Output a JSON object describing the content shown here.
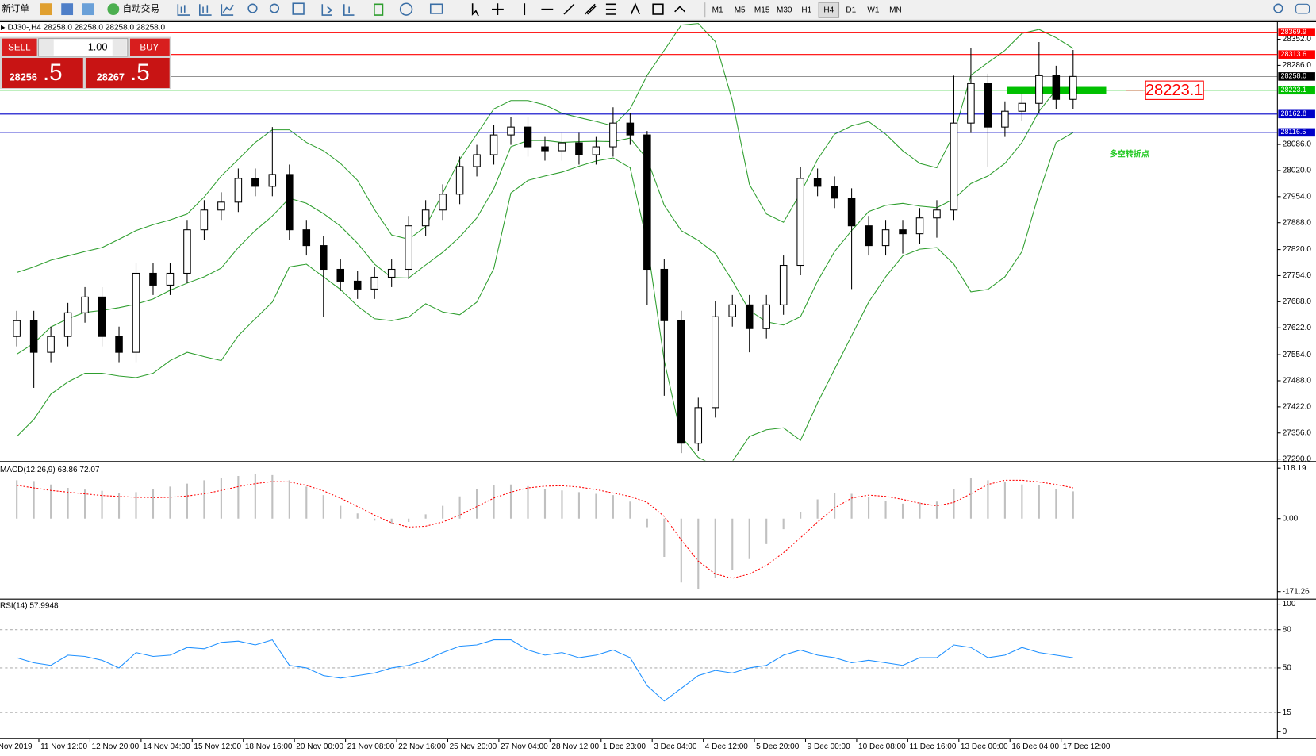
{
  "toolbar": {
    "new_order": "新订单",
    "auto_trading": "自动交易",
    "timeframes": [
      "M1",
      "M5",
      "M15",
      "M30",
      "H1",
      "H4",
      "D1",
      "W1",
      "MN"
    ],
    "selected_timeframe": 5
  },
  "order_panel": {
    "sell": "SELL",
    "buy": "BUY",
    "volume": "1.00",
    "sell_price": "28256",
    "sell_price_tail": ".5",
    "buy_price": "28267",
    "buy_price_tail": ".5"
  },
  "chart_data": [
    {
      "type": "candlestick",
      "title": "DJ30-,H4 28258.0 28258.0 28258.0 28258.0",
      "annotation": "多空转折点",
      "categories": [
        "Nov 2019",
        "11 Nov 12:00",
        null,
        null,
        "12 Nov 20:00",
        null,
        null,
        "14 Nov 04:00",
        null,
        null,
        "15 Nov 12:00",
        null,
        null,
        "18 Nov 16:00",
        null,
        null,
        "20 Nov 00:00",
        null,
        null,
        "21 Nov 08:00",
        null,
        null,
        "22 Nov 16:00",
        null,
        null,
        "25 Nov 20:00",
        null,
        null,
        "27 Nov 04:00",
        null,
        null,
        "28 Nov 12:00",
        null,
        null,
        "1 Dec 23:00",
        null,
        null,
        "3 Dec 04:00",
        null,
        null,
        "4 Dec 12:00",
        null,
        null,
        "5 Dec 20:00",
        null,
        null,
        "9 Dec 00:00",
        null,
        null,
        "10 Dec 08:00",
        null,
        null,
        "11 Dec 16:00",
        null,
        null,
        "13 Dec 00:00",
        null,
        null,
        "16 Dec 04:00",
        null,
        null,
        "17 Dec 12:00",
        null
      ],
      "open": [
        27600,
        27640,
        27560,
        27600,
        27660,
        27700,
        27600,
        27560,
        27760,
        27730,
        27760,
        27870,
        27920,
        27940,
        28000,
        27980,
        28010,
        27870,
        27830,
        27770,
        27740,
        27720,
        27750,
        27770,
        27880,
        27920,
        27960,
        28030,
        28060,
        28110,
        28130,
        28080,
        28070,
        28090,
        28060,
        28080,
        28140,
        28110,
        27770,
        27640,
        27330,
        27420,
        27650,
        27680,
        27620,
        27680,
        27780,
        28000,
        27980,
        27950,
        27880,
        27830,
        27870,
        27860,
        27900,
        27920,
        28140,
        28240,
        28130,
        28170,
        28190,
        28260,
        28200
      ],
      "high": [
        27665,
        27665,
        27625,
        27685,
        27725,
        27725,
        27625,
        27785,
        27785,
        27785,
        27895,
        27945,
        27965,
        28025,
        28025,
        28130,
        28035,
        27895,
        27855,
        27795,
        27765,
        27775,
        27795,
        27905,
        27945,
        27985,
        28055,
        28085,
        28135,
        28155,
        28155,
        28105,
        28115,
        28115,
        28105,
        28180,
        28165,
        28120,
        27795,
        27665,
        27445,
        27690,
        27705,
        27705,
        27705,
        27805,
        28030,
        28025,
        28005,
        27975,
        27905,
        27895,
        27895,
        27925,
        27945,
        28260,
        28330,
        28265,
        28195,
        28215,
        28345,
        28285,
        28325
      ],
      "low": [
        27575,
        27470,
        27535,
        27575,
        27635,
        27575,
        27535,
        27535,
        27705,
        27705,
        27735,
        27845,
        27895,
        27915,
        27955,
        27955,
        27845,
        27805,
        27650,
        27715,
        27695,
        27695,
        27725,
        27745,
        27855,
        27895,
        27935,
        28005,
        28035,
        28085,
        28055,
        28045,
        28045,
        28035,
        28035,
        28055,
        28085,
        27680,
        27450,
        27305,
        27310,
        27395,
        27625,
        27560,
        27595,
        27655,
        27755,
        27955,
        27925,
        27720,
        27805,
        27805,
        27810,
        27835,
        27850,
        27895,
        28115,
        28030,
        28105,
        28145,
        28165,
        28175,
        28175
      ],
      "close": [
        27640,
        27560,
        27600,
        27660,
        27700,
        27600,
        27560,
        27760,
        27730,
        27760,
        27870,
        27920,
        27940,
        28000,
        27980,
        28010,
        27870,
        27830,
        27770,
        27740,
        27720,
        27750,
        27770,
        27880,
        27920,
        27960,
        28030,
        28060,
        28110,
        28130,
        28080,
        28070,
        28090,
        28060,
        28080,
        28140,
        28110,
        27770,
        27640,
        27330,
        27420,
        27650,
        27680,
        27620,
        27680,
        27780,
        28000,
        27980,
        27950,
        27880,
        27830,
        27870,
        27860,
        27900,
        27920,
        28140,
        28240,
        28130,
        28170,
        28190,
        28260,
        28200,
        28258
      ],
      "up_color": "#ffffff",
      "down_color": "#000000",
      "series": [
        {
          "color": "#2e9e2e",
          "values": [
            27762,
            27776,
            27793,
            27804,
            27815,
            27825,
            27846,
            27868,
            27883,
            27895,
            27910,
            27953,
            28006,
            28048,
            28091,
            28123,
            28123,
            28091,
            28070,
            28038,
            27995,
            27921,
            27857,
            27846,
            27878,
            27963,
            28048,
            28112,
            28176,
            28197,
            28197,
            28186,
            28165,
            28154,
            28144,
            28133,
            28176,
            28261,
            28324,
            28388,
            28392,
            28346,
            28197,
            27985,
            27910,
            27889,
            27963,
            28048,
            28112,
            28133,
            28144,
            28112,
            28070,
            28038,
            28027,
            28112,
            28261,
            28293,
            28324,
            28367,
            28377,
            28356,
            28329
          ]
        },
        {
          "color": "#2e9e2e",
          "values": [
            27555,
            27583,
            27624,
            27645,
            27661,
            27666,
            27673,
            27682,
            27695,
            27717,
            27735,
            27751,
            27773,
            27825,
            27868,
            27905,
            27950,
            27937,
            27911,
            27879,
            27836,
            27783,
            27749,
            27748,
            27781,
            27813,
            27852,
            27900,
            27974,
            28080,
            28096,
            28096,
            28091,
            28093,
            28094,
            28093,
            28102,
            28049,
            27932,
            27868,
            27843,
            27810,
            27741,
            27666,
            27637,
            27629,
            27650,
            27740,
            27815,
            27868,
            27916,
            27932,
            27937,
            27930,
            27926,
            27948,
            27987,
            28006,
            28038,
            28091,
            28170,
            28224,
            28223
          ]
        },
        {
          "color": "#2e9e2e",
          "values": [
            27347,
            27390,
            27454,
            27485,
            27507,
            27507,
            27500,
            27496,
            27507,
            27539,
            27560,
            27549,
            27539,
            27602,
            27645,
            27687,
            27776,
            27783,
            27751,
            27719,
            27677,
            27645,
            27640,
            27649,
            27683,
            27662,
            27655,
            27687,
            27772,
            27963,
            27995,
            28006,
            28016,
            28031,
            28044,
            28052,
            28027,
            27836,
            27539,
            27347,
            27294,
            27273,
            27284,
            27347,
            27364,
            27369,
            27337,
            27432,
            27517,
            27602,
            27687,
            27751,
            27804,
            27821,
            27825,
            27783,
            27713,
            27719,
            27751,
            27815,
            27963,
            28091,
            28116
          ]
        }
      ],
      "hlines": [
        {
          "value": 28369.9,
          "color": "#ff0000"
        },
        {
          "value": 28313.6,
          "color": "#ff0000"
        },
        {
          "value": 28258,
          "label": "28258.0",
          "color": "#000000"
        },
        {
          "value": 28223.1,
          "color": "#00c000"
        },
        {
          "value": 28162.8,
          "color": "#0000c8"
        },
        {
          "value": 28116.5,
          "color": "#0000c8"
        }
      ],
      "ylim": [
        27288,
        28392
      ],
      "yticks": [
        {
          "value": 28352,
          "label": "28352.0"
        },
        {
          "value": 28286,
          "label": "28286.0"
        },
        {
          "value": 28086,
          "label": "28086.0"
        },
        {
          "value": 28020,
          "label": "28020.0"
        },
        {
          "value": 27954,
          "label": "27954.0"
        },
        {
          "value": 27888,
          "label": "27888.0"
        },
        {
          "value": 27820,
          "label": "27820.0"
        },
        {
          "value": 27754,
          "label": "27754.0"
        },
        {
          "value": 27688,
          "label": "27688.0"
        },
        {
          "value": 27622,
          "label": "27622.0"
        },
        {
          "value": 27554,
          "label": "27554.0"
        },
        {
          "value": 27488,
          "label": "27488.0"
        },
        {
          "value": 27422,
          "label": "27422.0"
        },
        {
          "value": 27356,
          "label": "27356.0"
        },
        {
          "value": 27290,
          "label": "27290.0"
        }
      ]
    },
    {
      "type": "macd",
      "title": "MACD(12,26,9) 63.86 72.07",
      "series": [
        {
          "color": "#c0c0c0",
          "values": [
            90,
            88,
            80,
            72,
            68,
            65,
            60,
            62,
            70,
            75,
            82,
            90,
            96,
            100,
            104,
            102,
            90,
            75,
            55,
            30,
            12,
            -5,
            -12,
            -8,
            10,
            30,
            52,
            70,
            78,
            80,
            76,
            70,
            66,
            62,
            58,
            55,
            40,
            -20,
            -90,
            -150,
            -165,
            -140,
            -120,
            -95,
            -60,
            -25,
            15,
            45,
            60,
            58,
            50,
            42,
            35,
            38,
            40,
            70,
            95,
            90,
            85,
            80,
            78,
            70,
            63.86
          ]
        },
        {
          "color": "#ff0000",
          "values": [
            78,
            72,
            66,
            62,
            58,
            54,
            52,
            50,
            49,
            50,
            53,
            58,
            66,
            75,
            82,
            87,
            86,
            78,
            65,
            48,
            28,
            8,
            -10,
            -20,
            -18,
            -8,
            8,
            28,
            48,
            62,
            72,
            76,
            77,
            74,
            68,
            60,
            52,
            38,
            5,
            -50,
            -100,
            -130,
            -140,
            -130,
            -110,
            -80,
            -45,
            -8,
            25,
            48,
            55,
            52,
            45,
            36,
            30,
            38,
            58,
            80,
            90,
            90,
            86,
            80,
            72.07
          ]
        }
      ],
      "ylim": [
        -185,
        130
      ],
      "yticks": [
        118.19,
        {
          "value": 0,
          "label": "0.00"
        },
        -171.26
      ]
    },
    {
      "type": "line",
      "title": "RSI(14) 57.9948",
      "series": [
        {
          "color": "#1e90ff",
          "values": [
            58,
            54,
            52,
            60,
            59,
            56,
            50,
            62,
            59,
            60,
            66,
            65,
            70,
            71,
            68,
            72,
            52,
            50,
            44,
            42,
            44,
            46,
            50,
            52,
            56,
            62,
            67,
            68,
            72,
            72,
            64,
            60,
            62,
            58,
            60,
            64,
            58,
            36,
            24,
            34,
            44,
            48,
            46,
            50,
            52,
            60,
            64,
            60,
            58,
            54,
            56,
            54,
            52,
            58,
            58,
            68,
            66,
            58,
            60,
            66,
            62,
            60,
            57.9948
          ]
        }
      ],
      "ylim": [
        0,
        100
      ],
      "yticks": [
        100,
        80,
        50,
        15,
        0
      ],
      "grid": true
    }
  ]
}
